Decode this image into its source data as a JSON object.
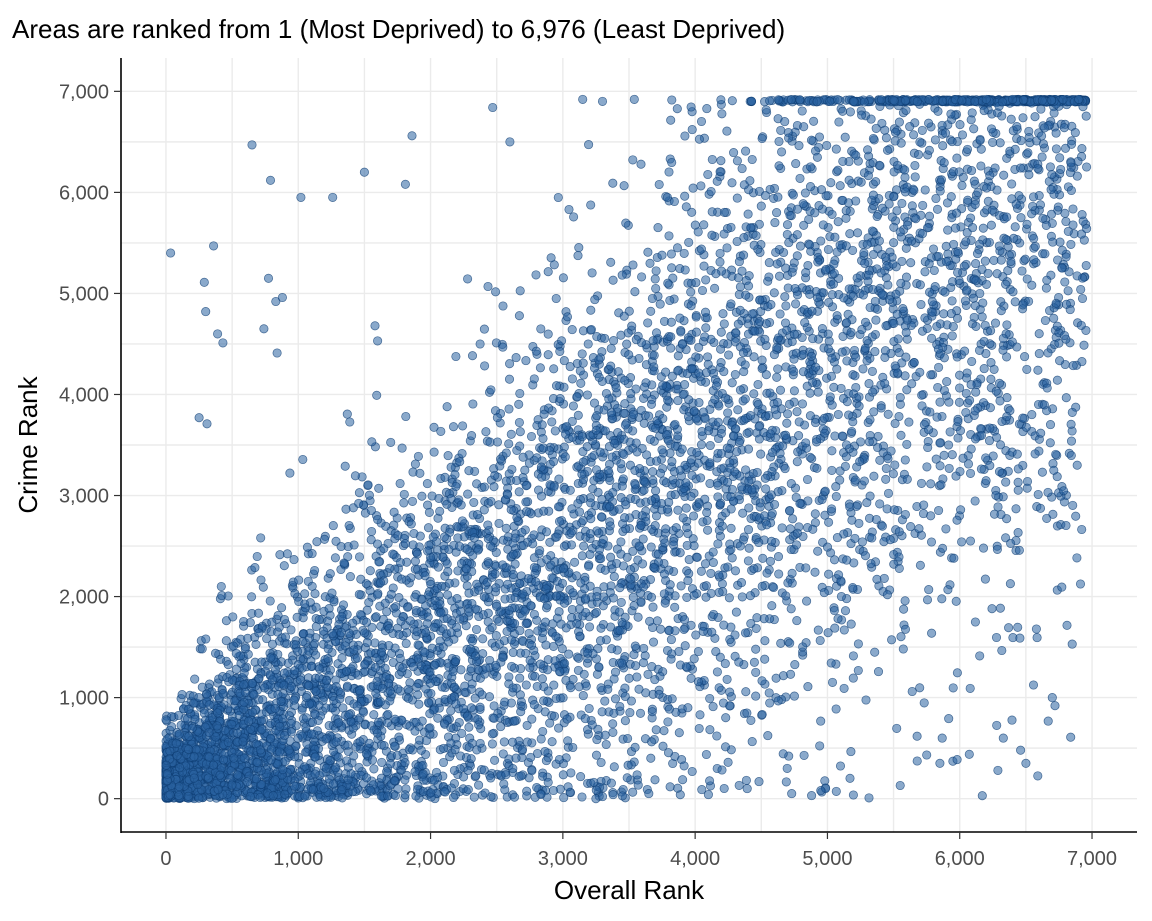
{
  "chart_data": {
    "type": "scatter",
    "title": "Areas are ranked from 1 (Most Deprived) to 6,976 (Least Deprived)",
    "xlabel": "Overall Rank",
    "ylabel": "Crime Rank",
    "xlim": [
      -340,
      7340
    ],
    "ylim": [
      -330,
      7330
    ],
    "x_ticks": [
      0,
      1000,
      2000,
      3000,
      4000,
      5000,
      6000,
      7000
    ],
    "x_tick_labels": [
      "0",
      "1,000",
      "2,000",
      "3,000",
      "4,000",
      "5,000",
      "6,000",
      "7,000"
    ],
    "y_ticks": [
      0,
      1000,
      2000,
      3000,
      4000,
      5000,
      6000,
      7000
    ],
    "y_tick_labels": [
      "0",
      "1,000",
      "2,000",
      "3,000",
      "4,000",
      "5,000",
      "6,000",
      "7,000"
    ],
    "grid": true,
    "legend": "none",
    "point_color": "#2a62a1",
    "point_stroke": "#0e3d73",
    "point_opacity": 0.55,
    "n_points": 6976,
    "series": [
      {
        "points": [
          [
            35,
            5400
          ],
          [
            650,
            6470
          ],
          [
            790,
            6120
          ],
          [
            1020,
            5950
          ],
          [
            1260,
            5950
          ],
          [
            1500,
            6200
          ],
          [
            1600,
            4530
          ],
          [
            1580,
            4680
          ],
          [
            1860,
            6560
          ],
          [
            1810,
            6080
          ],
          [
            360,
            5470
          ],
          [
            290,
            5110
          ],
          [
            300,
            4820
          ],
          [
            390,
            4600
          ],
          [
            430,
            4510
          ],
          [
            775,
            5150
          ],
          [
            830,
            4920
          ],
          [
            740,
            4650
          ],
          [
            880,
            4960
          ],
          [
            840,
            4410
          ],
          [
            250,
            3770
          ],
          [
            310,
            3710
          ],
          [
            2470,
            6840
          ],
          [
            3150,
            6920
          ],
          [
            3300,
            6900
          ],
          [
            5550,
            130
          ],
          [
            5850,
            350
          ],
          [
            6460,
            480
          ],
          [
            6500,
            350
          ],
          [
            6700,
            1000
          ],
          [
            6720,
            920
          ],
          [
            6850,
            1530
          ],
          [
            6180,
            2480
          ],
          [
            4950,
            80
          ],
          [
            4880,
            30
          ],
          [
            3650,
            50
          ],
          [
            4100,
            40
          ],
          [
            4050,
            90
          ],
          [
            3250,
            0
          ],
          [
            3300,
            20
          ],
          [
            3380,
            40
          ],
          [
            4730,
            50
          ],
          [
            2600,
            6500
          ],
          [
            3540,
            6920
          ],
          [
            5200,
            6900
          ],
          [
            6900,
            6920
          ],
          [
            6200,
            6920
          ],
          [
            6400,
            6920
          ]
        ]
      }
    ]
  }
}
